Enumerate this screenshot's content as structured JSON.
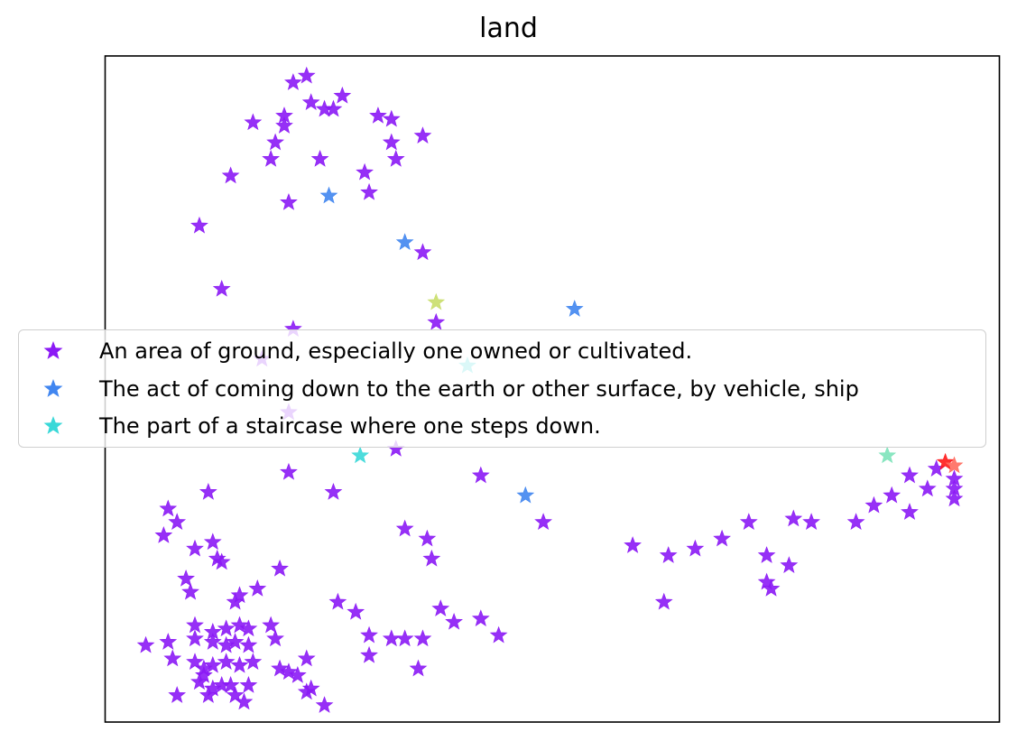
{
  "chart_data": {
    "type": "scatter",
    "title": "land",
    "xlabel": "",
    "ylabel": "",
    "xlim": [
      0,
      100
    ],
    "ylim": [
      0,
      100
    ],
    "grid": false,
    "ticks": false,
    "legend_placement": "center-left",
    "marker": "star",
    "series": [
      {
        "name": "An area of ground, especially one owned or cultivated.",
        "color": "#8b19f5",
        "points": [
          [
            21,
            96
          ],
          [
            22.5,
            97
          ],
          [
            23,
            93
          ],
          [
            24.5,
            92
          ],
          [
            25.5,
            92
          ],
          [
            26.5,
            94
          ],
          [
            16.5,
            90
          ],
          [
            20,
            91
          ],
          [
            20,
            89.5
          ],
          [
            19,
            87
          ],
          [
            18.5,
            84.5
          ],
          [
            24,
            84.5
          ],
          [
            32,
            90.5
          ],
          [
            30.5,
            91
          ],
          [
            32,
            87
          ],
          [
            32.5,
            84.5
          ],
          [
            35.5,
            88
          ],
          [
            29,
            82.5
          ],
          [
            14,
            82
          ],
          [
            29.5,
            79.5
          ],
          [
            20.5,
            78
          ],
          [
            10.5,
            74.5
          ],
          [
            35.5,
            70.5
          ],
          [
            13,
            65
          ],
          [
            21,
            59
          ],
          [
            37,
            60
          ],
          [
            17.5,
            54.5
          ],
          [
            20.5,
            46.5
          ],
          [
            32.5,
            41
          ],
          [
            42,
            37
          ],
          [
            20.5,
            37.5
          ],
          [
            25.5,
            34.5
          ],
          [
            11.5,
            34.5
          ],
          [
            7,
            32
          ],
          [
            8,
            30
          ],
          [
            6.5,
            28
          ],
          [
            12,
            27
          ],
          [
            10,
            26
          ],
          [
            12.5,
            24.5
          ],
          [
            13,
            24
          ],
          [
            9,
            21.5
          ],
          [
            19.5,
            23
          ],
          [
            9.5,
            19.5
          ],
          [
            15,
            19
          ],
          [
            14.5,
            18
          ],
          [
            17,
            20
          ],
          [
            10,
            14.5
          ],
          [
            12,
            13.5
          ],
          [
            13.5,
            14
          ],
          [
            15,
            14.5
          ],
          [
            16,
            14
          ],
          [
            18.5,
            14.5
          ],
          [
            7,
            12
          ],
          [
            10,
            12.5
          ],
          [
            12,
            12
          ],
          [
            13.5,
            11.5
          ],
          [
            14.5,
            12
          ],
          [
            16,
            11.5
          ],
          [
            19,
            12.5
          ],
          [
            4.5,
            11.5
          ],
          [
            7.5,
            9.5
          ],
          [
            10,
            9
          ],
          [
            11,
            8
          ],
          [
            12,
            8.5
          ],
          [
            13.5,
            9
          ],
          [
            15,
            8.5
          ],
          [
            16.5,
            9
          ],
          [
            19.5,
            8
          ],
          [
            20.5,
            7.5
          ],
          [
            22.5,
            9.5
          ],
          [
            10.5,
            6
          ],
          [
            12,
            5
          ],
          [
            14,
            5.5
          ],
          [
            16,
            5.5
          ],
          [
            21.5,
            7
          ],
          [
            23,
            5
          ],
          [
            11,
            7
          ],
          [
            13,
            5.5
          ],
          [
            8,
            4
          ],
          [
            11.5,
            4
          ],
          [
            14.5,
            4
          ],
          [
            15.5,
            3
          ],
          [
            22.5,
            4.5
          ],
          [
            24.5,
            2.5
          ],
          [
            33.5,
            29
          ],
          [
            36,
            27.5
          ],
          [
            36.5,
            24.5
          ],
          [
            26,
            18
          ],
          [
            28,
            16.5
          ],
          [
            29.5,
            13
          ],
          [
            32,
            12.5
          ],
          [
            33.5,
            12.5
          ],
          [
            37.5,
            17
          ],
          [
            39,
            15
          ],
          [
            42,
            15.5
          ],
          [
            44,
            13
          ],
          [
            35.5,
            12.5
          ],
          [
            29.5,
            10
          ],
          [
            35,
            8
          ],
          [
            49,
            30
          ],
          [
            59,
            26.5
          ],
          [
            63,
            25
          ],
          [
            66,
            26
          ],
          [
            69,
            27.5
          ],
          [
            72,
            30
          ],
          [
            77,
            30.5
          ],
          [
            79,
            30
          ],
          [
            74,
            25
          ],
          [
            76.5,
            23.5
          ],
          [
            74,
            21
          ],
          [
            74.5,
            20
          ],
          [
            62.5,
            18
          ],
          [
            84,
            30
          ],
          [
            86,
            32.5
          ],
          [
            88,
            34
          ],
          [
            90,
            37
          ],
          [
            93,
            38
          ],
          [
            95,
            36.5
          ],
          [
            92,
            35
          ],
          [
            95,
            33.5
          ],
          [
            90,
            31.5
          ],
          [
            95,
            35
          ]
        ]
      },
      {
        "name": "The act of coming down to the earth or other surface, by vehicle, ship",
        "color": "#4186f0",
        "points": [
          [
            25,
            79
          ],
          [
            33.5,
            72
          ],
          [
            52.5,
            62
          ],
          [
            47,
            34
          ]
        ]
      },
      {
        "name": "The part of a staircase where one steps down.",
        "color": "#3ad8d8",
        "points": [
          [
            28.5,
            40
          ],
          [
            40.5,
            53.5
          ]
        ]
      }
    ],
    "other_points": [
      {
        "x": 37,
        "y": 63,
        "color": "#c9de6a"
      },
      {
        "x": 87.5,
        "y": 40,
        "color": "#7de3ba"
      },
      {
        "x": 94,
        "y": 39,
        "color": "#ff1a1a"
      },
      {
        "x": 95,
        "y": 38.5,
        "color": "#ff6b5e"
      }
    ]
  }
}
